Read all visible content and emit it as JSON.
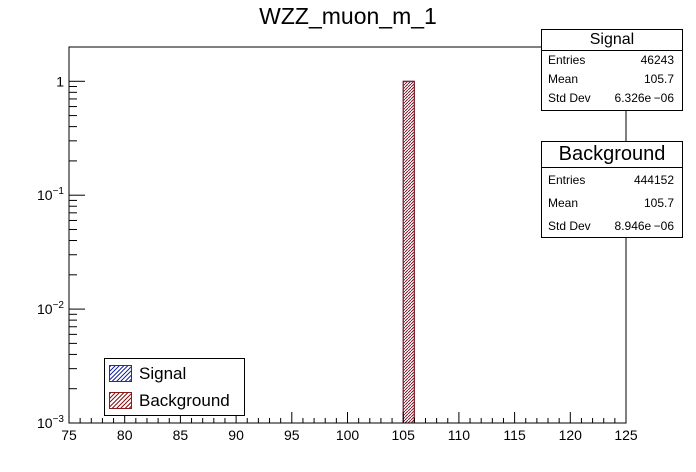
{
  "chart_data": {
    "type": "bar",
    "title": "WZZ_muon_m_1",
    "xlabel": "",
    "ylabel": "",
    "xlim": [
      75,
      125
    ],
    "ylim": [
      0.001,
      2
    ],
    "yscale": "log",
    "x_ticks": [
      "75",
      "80",
      "85",
      "90",
      "95",
      "100",
      "105",
      "110",
      "115",
      "120",
      "125"
    ],
    "y_ticks": [
      {
        "value": 1,
        "base": "1",
        "exp": ""
      },
      {
        "value": 0.1,
        "base": "10",
        "exp": "−1"
      },
      {
        "value": 0.01,
        "base": "10",
        "exp": "−2"
      },
      {
        "value": 0.001,
        "base": "10",
        "exp": "−3"
      }
    ],
    "grid": false,
    "legend_position": "bottom-left",
    "series": [
      {
        "name": "Signal",
        "color": "#1f2fa0",
        "fill": "hatched-blue",
        "bins": [
          {
            "x0": 105,
            "x1": 106,
            "value": 1.0
          }
        ]
      },
      {
        "name": "Background",
        "color": "#8b1a1a",
        "fill": "hatched-red",
        "bins": [
          {
            "x0": 105,
            "x1": 106,
            "value": 1.0
          }
        ]
      }
    ]
  },
  "stats": [
    {
      "title": "Signal",
      "entries": "46243",
      "mean": "105.7",
      "std_dev": "6.326e −06",
      "labels": {
        "entries": "Entries",
        "mean": "Mean",
        "std_dev": "Std Dev"
      }
    },
    {
      "title": "Background",
      "entries": "444152",
      "mean": "105.7",
      "std_dev": "8.946e −06",
      "labels": {
        "entries": "Entries",
        "mean": "Mean",
        "std_dev": "Std Dev"
      }
    }
  ],
  "legend": {
    "entries": [
      {
        "label": "Signal",
        "color": "#1f2fa0"
      },
      {
        "label": "Background",
        "color": "#8b1a1a"
      }
    ]
  }
}
